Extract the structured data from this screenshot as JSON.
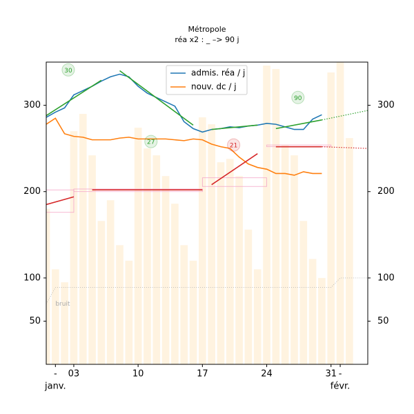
{
  "chart_data": {
    "type": "line",
    "title": "Métropole",
    "subtitle": "réa x2 : _ –> 90 j",
    "xlim": [
      0,
      35
    ],
    "xticks": [
      {
        "value": 1,
        "label": "-"
      },
      {
        "value": 3,
        "label": "03"
      },
      {
        "value": 10,
        "label": "10"
      },
      {
        "value": 17,
        "label": "17"
      },
      {
        "value": 24,
        "label": "24"
      },
      {
        "value": 31,
        "label": "31"
      },
      {
        "value": 32,
        "label": "-"
      }
    ],
    "month_labels": [
      {
        "value": 1,
        "label": "janv."
      },
      {
        "value": 32,
        "label": "févr."
      }
    ],
    "ylim": [
      0,
      350
    ],
    "yticks": [
      50,
      100,
      200,
      300
    ],
    "y2lim": [
      0,
      350
    ],
    "y2ticks": [
      50,
      100,
      200,
      300
    ],
    "legend": "upper center",
    "x": [
      0,
      1,
      2,
      3,
      4,
      5,
      6,
      7,
      8,
      9,
      10,
      11,
      12,
      13,
      14,
      15,
      16,
      17,
      18,
      19,
      20,
      21,
      22,
      23,
      24,
      25,
      26,
      27,
      28,
      29,
      30
    ],
    "series": [
      {
        "name": "admis. réa / j",
        "color": "#1f77b4",
        "values": [
          286,
          292,
          297,
          312,
          317,
          322,
          328,
          333,
          336,
          333,
          322,
          314,
          309,
          304,
          299,
          281,
          273,
          269,
          272,
          273,
          275,
          274,
          276,
          277,
          279,
          278,
          275,
          272,
          272,
          284,
          289
        ]
      },
      {
        "name": "nouv. dc / j",
        "color": "#ff7f0e",
        "values": [
          278,
          285,
          267,
          264,
          263,
          260,
          260,
          260,
          262,
          263,
          261,
          261,
          261,
          261,
          260,
          259,
          261,
          260,
          255,
          252,
          250,
          240,
          232,
          228,
          226,
          221,
          221,
          219,
          223,
          221,
          221
        ]
      }
    ],
    "bars": {
      "color": "#fff3e0",
      "x": [
        0,
        1,
        2,
        3,
        4,
        5,
        6,
        7,
        8,
        9,
        10,
        11,
        12,
        13,
        14,
        15,
        16,
        17,
        18,
        19,
        20,
        21,
        22,
        23,
        24,
        25,
        26,
        27,
        28,
        29,
        30,
        31,
        32,
        33
      ],
      "values": [
        180,
        110,
        95,
        270,
        290,
        242,
        166,
        190,
        138,
        120,
        274,
        250,
        242,
        218,
        186,
        138,
        120,
        286,
        278,
        234,
        238,
        218,
        156,
        110,
        346,
        342,
        254,
        242,
        166,
        122,
        100,
        338,
        350,
        262
      ]
    },
    "trend_lines": [
      {
        "color": "#2ca02c",
        "linestyle": "solid",
        "x": [
          0,
          6
        ],
        "values": [
          288,
          329
        ]
      },
      {
        "color": "#2ca02c",
        "linestyle": "solid",
        "x": [
          8,
          16
        ],
        "values": [
          340,
          277
        ]
      },
      {
        "color": "#2ca02c",
        "linestyle": "solid",
        "x": [
          18,
          23
        ],
        "values": [
          272,
          277
        ]
      },
      {
        "color": "#2ca02c",
        "linestyle": "solid",
        "x": [
          25,
          30
        ],
        "values": [
          273,
          283
        ]
      },
      {
        "color": "#2ca02c",
        "linestyle": "dotted",
        "x": [
          30,
          35
        ],
        "values": [
          283,
          294
        ]
      },
      {
        "color": "#d62728",
        "linestyle": "solid",
        "x": [
          0,
          3
        ],
        "values": [
          185,
          194
        ]
      },
      {
        "color": "#d62728",
        "linestyle": "solid",
        "x": [
          5,
          17
        ],
        "values": [
          202,
          202
        ]
      },
      {
        "color": "#d62728",
        "linestyle": "solid",
        "x": [
          18,
          23
        ],
        "values": [
          208,
          244
        ]
      },
      {
        "color": "#d62728",
        "linestyle": "solid",
        "x": [
          25,
          30
        ],
        "values": [
          252,
          252
        ]
      },
      {
        "color": "#d62728",
        "linestyle": "dotted",
        "x": [
          30,
          35
        ],
        "values": [
          252,
          250
        ]
      }
    ],
    "boxes": {
      "color": "#f4a6c8",
      "items": [
        {
          "x": [
            0,
            3
          ],
          "y": [
            176,
            202
          ]
        },
        {
          "x": [
            3,
            17
          ],
          "y": [
            200,
            203
          ]
        },
        {
          "x": [
            17,
            24
          ],
          "y": [
            206,
            216
          ]
        },
        {
          "x": [
            24,
            31
          ],
          "y": [
            252,
            254
          ]
        }
      ]
    },
    "noise": {
      "label": "bruit",
      "color": "#aaaaaa",
      "x": [
        0,
        1,
        31,
        32,
        35
      ],
      "values": [
        70,
        89,
        89,
        100,
        100
      ]
    },
    "annotations": [
      {
        "text": "30",
        "x": 2.4,
        "y": 341,
        "color": "#2ca02c"
      },
      {
        "text": "27",
        "x": 11.4,
        "y": 258,
        "color": "#2ca02c"
      },
      {
        "text": "21",
        "x": 20.4,
        "y": 254,
        "color": "#d62728"
      },
      {
        "text": "90",
        "x": 27.4,
        "y": 309,
        "color": "#2ca02c"
      }
    ]
  }
}
